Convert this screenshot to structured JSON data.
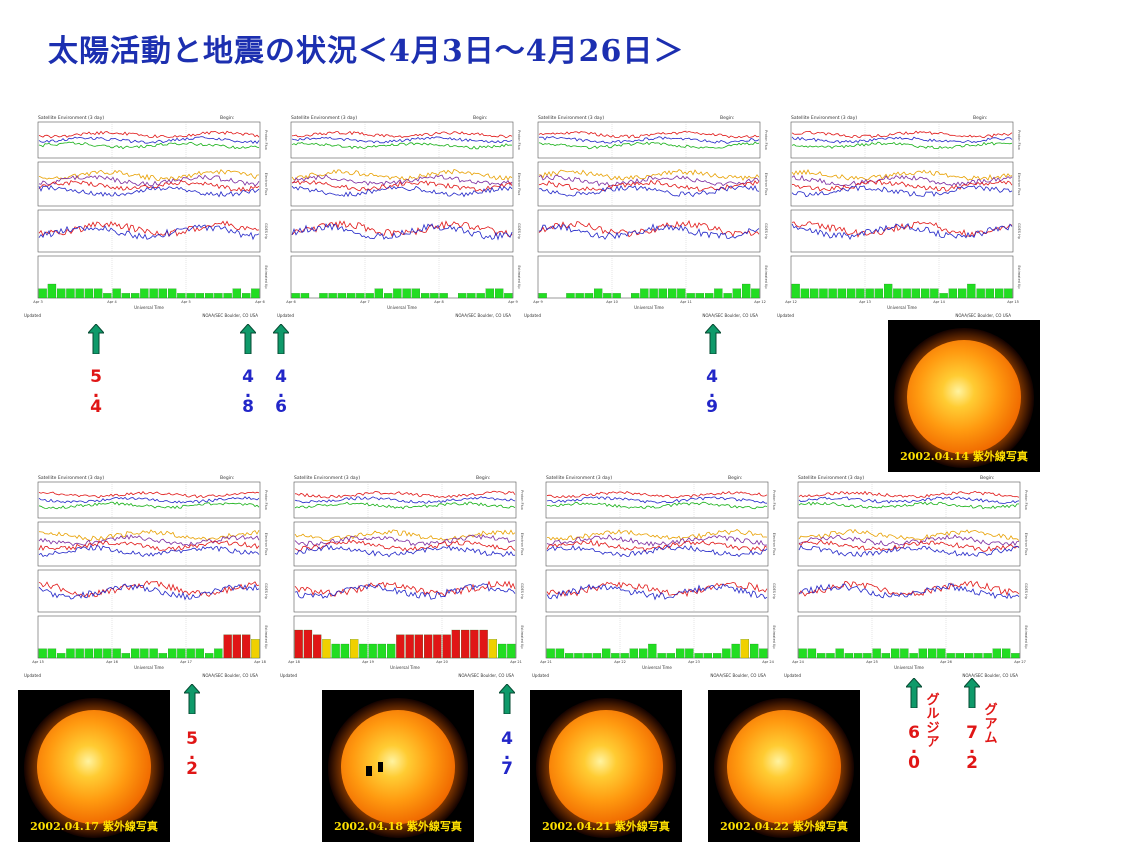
{
  "title": "太陽活動と地震の状況＜4月3日～4月26日＞",
  "colors": {
    "title": "#1c2fb0",
    "arrow": "#0f9a6a",
    "red": "#e01616",
    "blue": "#2226c8",
    "sun_caption": "#ffe000"
  },
  "panel_texts": {
    "header_left": "Satellite Environment (3 day)",
    "header_right": "Begin:",
    "xlabel": "Universal Time",
    "footer_left": "Updated",
    "footer_right": "NOAA/SEC Boulder, CO USA",
    "y_labels": [
      "Proton Flux",
      "Electron Flux",
      "GOES Hp",
      "Estimated Kp"
    ]
  },
  "chart_data": [
    {
      "type": "bar",
      "title": "Satellite Environment (3 day)",
      "xlabel": "Universal Time",
      "ylabel": "Estimated Kp",
      "ylim": [
        0,
        9
      ],
      "x_ticks": [
        "Apr 3",
        "Apr 4",
        "Apr 5",
        "Apr 6"
      ],
      "values": [
        2,
        3,
        2,
        2,
        2,
        2,
        2,
        1,
        2,
        1,
        1,
        2,
        2,
        2,
        2,
        1,
        1,
        1,
        1,
        1,
        1,
        2,
        1,
        2
      ]
    },
    {
      "type": "bar",
      "title": "Satellite Environment (3 day)",
      "xlabel": "Universal Time",
      "ylabel": "Estimated Kp",
      "ylim": [
        0,
        9
      ],
      "x_ticks": [
        "Apr 6",
        "Apr 7",
        "Apr 8",
        "Apr 9"
      ],
      "values": [
        1,
        1,
        0,
        1,
        1,
        1,
        1,
        1,
        1,
        2,
        1,
        2,
        2,
        2,
        1,
        1,
        1,
        0,
        1,
        1,
        1,
        2,
        2,
        1
      ]
    },
    {
      "type": "bar",
      "title": "Satellite Environment (3 day)",
      "xlabel": "Universal Time",
      "ylabel": "Estimated Kp",
      "ylim": [
        0,
        9
      ],
      "x_ticks": [
        "Apr 9",
        "Apr 10",
        "Apr 11",
        "Apr 12"
      ],
      "values": [
        1,
        0,
        0,
        1,
        1,
        1,
        2,
        1,
        1,
        0,
        1,
        2,
        2,
        2,
        2,
        2,
        1,
        1,
        1,
        2,
        1,
        2,
        3,
        2
      ]
    },
    {
      "type": "bar",
      "title": "Satellite Environment (3 day)",
      "xlabel": "Universal Time",
      "ylabel": "Estimated Kp",
      "ylim": [
        0,
        9
      ],
      "x_ticks": [
        "Apr 12",
        "Apr 13",
        "Apr 14",
        "Apr 15"
      ],
      "values": [
        3,
        2,
        2,
        2,
        2,
        2,
        2,
        2,
        2,
        2,
        3,
        2,
        2,
        2,
        2,
        2,
        1,
        2,
        2,
        3,
        2,
        2,
        2,
        2
      ]
    },
    {
      "type": "bar",
      "title": "Satellite Environment (3 day)",
      "xlabel": "Universal Time",
      "ylabel": "Estimated Kp",
      "ylim": [
        0,
        9
      ],
      "x_ticks": [
        "Apr 15",
        "Apr 16",
        "Apr 17",
        "Apr 18"
      ],
      "values": [
        2,
        2,
        1,
        2,
        2,
        2,
        2,
        2,
        2,
        1,
        2,
        2,
        2,
        1,
        2,
        2,
        2,
        2,
        1,
        2,
        5,
        5,
        5,
        4
      ]
    },
    {
      "type": "bar",
      "title": "Satellite Environment (3 day)",
      "xlabel": "Universal Time",
      "ylabel": "Estimated Kp",
      "ylim": [
        0,
        9
      ],
      "x_ticks": [
        "Apr 18",
        "Apr 19",
        "Apr 20",
        "Apr 21"
      ],
      "values": [
        6,
        6,
        5,
        4,
        3,
        3,
        4,
        3,
        3,
        3,
        3,
        5,
        5,
        5,
        5,
        5,
        5,
        6,
        6,
        6,
        6,
        4,
        3,
        3
      ]
    },
    {
      "type": "bar",
      "title": "Satellite Environment (3 day)",
      "xlabel": "Universal Time",
      "ylabel": "Estimated Kp",
      "ylim": [
        0,
        9
      ],
      "x_ticks": [
        "Apr 21",
        "Apr 22",
        "Apr 23",
        "Apr 24"
      ],
      "values": [
        2,
        2,
        1,
        1,
        1,
        1,
        2,
        1,
        1,
        2,
        2,
        3,
        1,
        1,
        2,
        2,
        1,
        1,
        1,
        2,
        3,
        4,
        3,
        2
      ]
    },
    {
      "type": "bar",
      "title": "Satellite Environment (3 day)",
      "xlabel": "Universal Time",
      "ylabel": "Estimated Kp",
      "ylim": [
        0,
        9
      ],
      "x_ticks": [
        "Apr 24",
        "Apr 25",
        "Apr 26",
        "Apr 27"
      ],
      "values": [
        2,
        2,
        1,
        1,
        2,
        1,
        1,
        1,
        2,
        1,
        2,
        2,
        1,
        2,
        2,
        2,
        1,
        1,
        1,
        1,
        1,
        2,
        2,
        1
      ]
    }
  ],
  "quakes": [
    {
      "mag": [
        "5",
        ".",
        "4"
      ],
      "color": "red"
    },
    {
      "mag": [
        "4",
        ".",
        "8"
      ],
      "color": "blue"
    },
    {
      "mag": [
        "4",
        ".",
        "6"
      ],
      "color": "blue"
    },
    {
      "mag": [
        "4",
        ".",
        "9"
      ],
      "color": "blue"
    },
    {
      "mag": [
        "5",
        ".",
        "2"
      ],
      "color": "red"
    },
    {
      "mag": [
        "4",
        ".",
        "7"
      ],
      "color": "blue"
    },
    {
      "mag": [
        "6",
        ".",
        "0"
      ],
      "color": "red",
      "place": [
        "グ",
        "ル",
        "ジ",
        "ア"
      ]
    },
    {
      "mag": [
        "7",
        ".",
        "2"
      ],
      "color": "red",
      "place": [
        "グ",
        "ア",
        "ム"
      ]
    }
  ],
  "suns": [
    {
      "caption": "2002.04.14 紫外線写真"
    },
    {
      "caption": "2002.04.17 紫外線写真"
    },
    {
      "caption": "2002.04.18 紫外線写真"
    },
    {
      "caption": "2002.04.21 紫外線写真"
    },
    {
      "caption": "2002.04.22 紫外線写真"
    }
  ]
}
